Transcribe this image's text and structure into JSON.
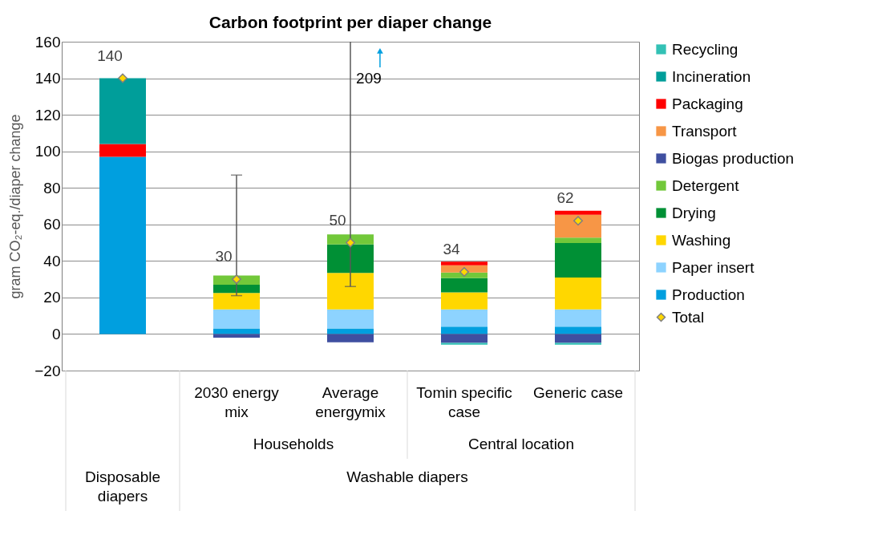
{
  "chart_data": {
    "type": "bar",
    "title": "Carbon footprint per diaper change",
    "ylabel": "gram CO₂-eq./diaper change",
    "categories": [
      null,
      "2030 energy mix",
      "Average energymix",
      "Tomin specific case",
      "Generic case"
    ],
    "stacked": true,
    "ylim": [
      -20,
      160
    ],
    "yticks": [
      -20,
      0,
      20,
      40,
      60,
      80,
      100,
      120,
      140,
      160
    ],
    "grid": "y",
    "legend": "right",
    "series": [
      {
        "name": "Production",
        "color": "#009fdf",
        "values": [
          97,
          3,
          3,
          4,
          4
        ]
      },
      {
        "name": "Paper insert",
        "color": "#8dd3ff",
        "values": [
          null,
          10.5,
          10.5,
          9.5,
          9.5
        ]
      },
      {
        "name": "Washing",
        "color": "#ffd700",
        "values": [
          null,
          9,
          20,
          9.3,
          17.4
        ]
      },
      {
        "name": "Drying",
        "color": "#009035",
        "values": [
          null,
          4.5,
          15.5,
          7.8,
          18.9
        ]
      },
      {
        "name": "Detergent",
        "color": "#72c83a",
        "values": [
          null,
          5,
          5.5,
          3.1,
          3
        ]
      },
      {
        "name": "Biogas production",
        "color": "#3f4fa0",
        "values": [
          null,
          -2,
          -4.5,
          -4.8,
          -4.8
        ]
      },
      {
        "name": "Transport",
        "color": "#f79646",
        "values": [
          null,
          null,
          null,
          3.9,
          12.5
        ]
      },
      {
        "name": "Packaging",
        "color": "#ff0000",
        "values": [
          7,
          null,
          null,
          2,
          2.2
        ]
      },
      {
        "name": "Incineration",
        "color": "#009e9a",
        "values": [
          36,
          null,
          null,
          null,
          null
        ]
      },
      {
        "name": "Recycling",
        "color": "#33c1b5",
        "values": [
          null,
          null,
          null,
          -1,
          -1
        ]
      },
      {
        "name": "Total",
        "type": "scatter",
        "marker": "diamond",
        "color": "#ffd700",
        "values": [
          140,
          30,
          50,
          34,
          62
        ],
        "value_labels": [
          "140",
          "30",
          "50",
          "34",
          "62"
        ],
        "errors": [
          null,
          [
            21,
            87
          ],
          [
            26,
            160
          ],
          null,
          null
        ]
      }
    ],
    "annotations": [
      {
        "text": "209",
        "x": "Average energymix",
        "y": 140
      },
      "Households",
      "Central location",
      "Washable diapers",
      "Disposable diapers"
    ]
  }
}
